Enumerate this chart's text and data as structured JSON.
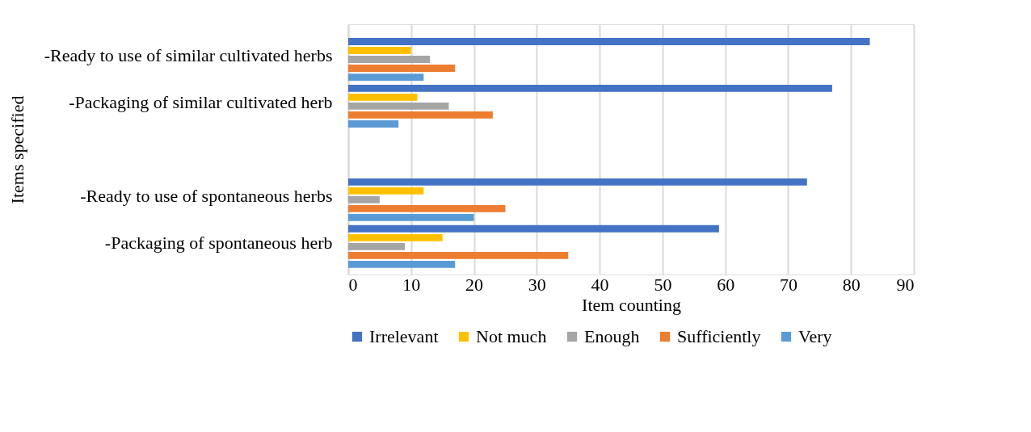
{
  "chart_data": {
    "type": "bar",
    "orientation": "horizontal",
    "xlabel": "Item counting",
    "ylabel": "Items specified",
    "categories": [
      "-Ready to use  of similar cultivated herbs",
      "-Packaging of similar cultivated herb",
      null,
      "-Ready to use of spontaneous herbs",
      "-Packaging of spontaneous herb"
    ],
    "series": [
      {
        "name": "Irrelevant",
        "color": "#4472c4",
        "values": [
          83,
          77,
          null,
          73,
          59
        ]
      },
      {
        "name": "Not much",
        "color": "#ffc000",
        "values": [
          10,
          11,
          null,
          12,
          15
        ]
      },
      {
        "name": "Enough",
        "color": "#a5a5a5",
        "values": [
          13,
          16,
          null,
          5,
          9
        ]
      },
      {
        "name": "Sufficiently",
        "color": "#ed7d31",
        "values": [
          17,
          23,
          null,
          25,
          35
        ]
      },
      {
        "name": "Very",
        "color": "#5b9bd5",
        "values": [
          12,
          8,
          null,
          20,
          17
        ]
      }
    ],
    "xlim": [
      0,
      90
    ],
    "xticks": [
      0,
      10,
      20,
      30,
      40,
      50,
      60,
      70,
      80,
      90
    ],
    "grid": "x",
    "legend": "bottom"
  }
}
